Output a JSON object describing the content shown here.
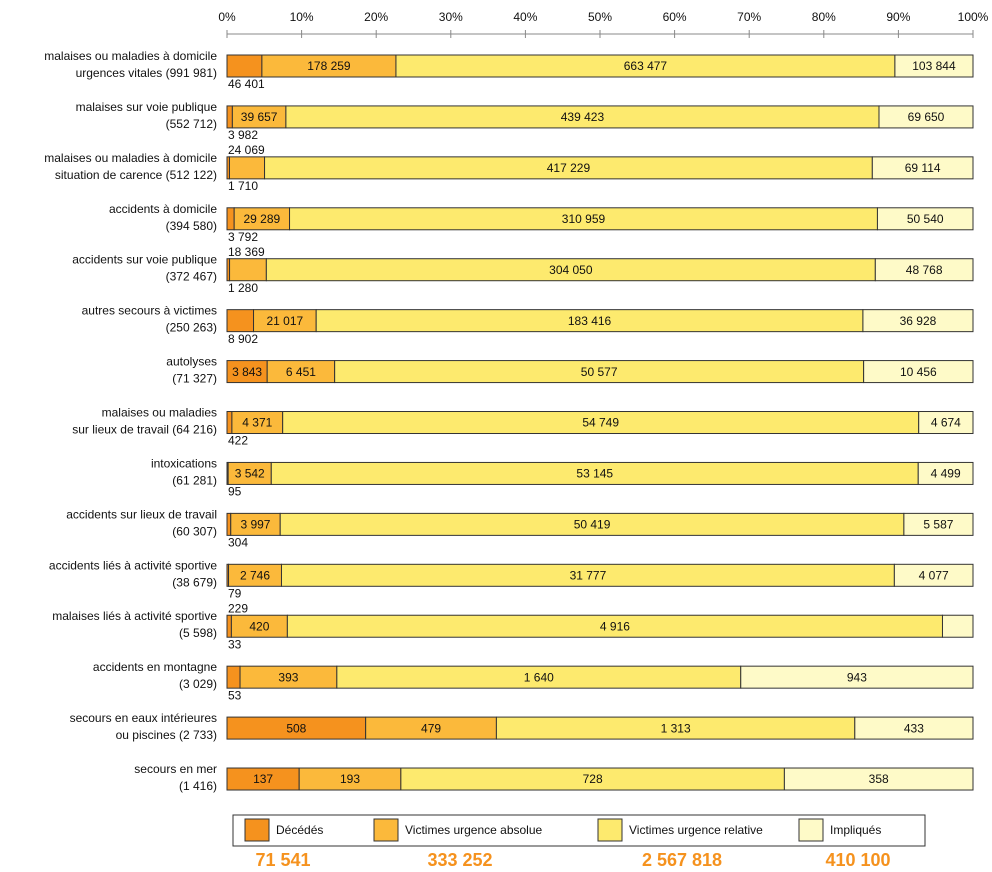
{
  "chart_data": {
    "type": "bar",
    "orientation": "horizontal",
    "stacked": "percent",
    "categories": [
      "malaises ou maladies à domicile\nurgences vitales (991 981)",
      "malaises sur voie publique\n(552 712)",
      "malaises ou maladies à domicile\nsituation de carence (512 122)",
      "accidents à domicile\n(394 580)",
      "accidents sur voie publique\n(372 467)",
      "autres  secours à victimes\n(250 263)",
      "autolyses\n(71 327)",
      "malaises ou maladies\nsur lieux de travail (64 216)",
      "intoxications\n(61 281)",
      "accidents sur lieux de travail\n(60 307)",
      "accidents liés à activité sportive\n(38 679)",
      "malaises liés à activité sportive\n(5 598)",
      "accidents en montagne\n(3 029)",
      "secours en eaux intérieures\nou piscines (2 733)",
      "secours en mer\n(1 416)"
    ],
    "series": [
      {
        "name": "Décédés",
        "color": "#f5921e",
        "total": 71541,
        "total_label": "71 541",
        "values": [
          46401,
          3982,
          1710,
          3792,
          1280,
          8902,
          3843,
          422,
          95,
          304,
          79,
          33,
          53,
          508,
          137
        ],
        "value_labels": [
          "46 401",
          "3 982",
          "1 710",
          "3 792",
          "1 280",
          "8 902",
          "3 843",
          "422",
          "95",
          "304",
          "79",
          "33",
          "53",
          "508",
          "137"
        ]
      },
      {
        "name": "Victimes urgence absolue",
        "color": "#fbb93b",
        "total": 333252,
        "total_label": "333 252",
        "values": [
          178259,
          39657,
          24069,
          29289,
          18369,
          21017,
          6451,
          4371,
          3542,
          3997,
          2746,
          420,
          393,
          479,
          193
        ],
        "value_labels": [
          "178 259",
          "39 657",
          "24 069",
          "29 289",
          "18 369",
          "21 017",
          "6 451",
          "4 371",
          "3 542",
          "3 997",
          "2 746",
          "420",
          "393",
          "479",
          "193"
        ]
      },
      {
        "name": "Victimes urgence relative",
        "color": "#fdea6e",
        "total": 2567818,
        "total_label": "2 567 818",
        "values": [
          663477,
          439423,
          417229,
          310959,
          304050,
          183416,
          50577,
          54749,
          53145,
          50419,
          31777,
          4916,
          1640,
          1313,
          728
        ],
        "value_labels": [
          "663 477",
          "439 423",
          "417 229",
          "310 959",
          "304 050",
          "183 416",
          "50 577",
          "54 749",
          "53 145",
          "50 419",
          "31 777",
          "4 916",
          "1 640",
          "1 313",
          "728"
        ]
      },
      {
        "name": "Impliqués",
        "color": "#fefac8",
        "total": 410100,
        "total_label": "410 100",
        "values": [
          103844,
          69650,
          69114,
          50540,
          48768,
          36928,
          10456,
          4674,
          4499,
          5587,
          4077,
          229,
          943,
          433,
          358
        ],
        "value_labels": [
          "103 844",
          "69 650",
          "69 114",
          "50 540",
          "48 768",
          "36 928",
          "10 456",
          "4 674",
          "4 499",
          "5 587",
          "4 077",
          "229",
          "943",
          "433",
          "358"
        ]
      }
    ],
    "xlim": [
      0,
      100
    ],
    "xticks": [
      {
        "value": 0,
        "label": "0%"
      },
      {
        "value": 10,
        "label": "10%"
      },
      {
        "value": 20,
        "label": "20%"
      },
      {
        "value": 30,
        "label": "30%"
      },
      {
        "value": 40,
        "label": "40%"
      },
      {
        "value": 50,
        "label": "50%"
      },
      {
        "value": 60,
        "label": "60%"
      },
      {
        "value": 70,
        "label": "70%"
      },
      {
        "value": 80,
        "label": "80%"
      },
      {
        "value": 90,
        "label": "90%"
      },
      {
        "value": 100,
        "label": "100%"
      }
    ],
    "legend": "bottom"
  }
}
